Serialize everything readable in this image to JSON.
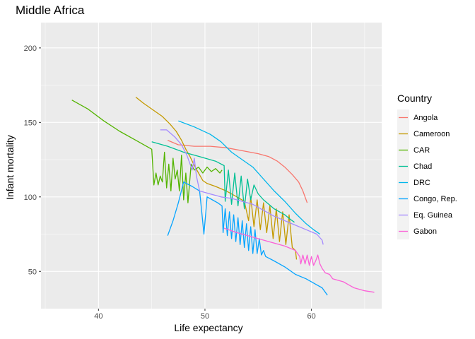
{
  "chart_data": {
    "type": "line",
    "title": "Middle Africa",
    "xlabel": "Life expectancy",
    "ylabel": "Infant mortality",
    "xlim": [
      34.6,
      66.6
    ],
    "ylim": [
      25,
      217
    ],
    "x_ticks": [
      40,
      50,
      60
    ],
    "y_ticks": [
      50,
      100,
      150,
      200
    ],
    "grid": true,
    "legend_title": "Country",
    "legend_position": "right",
    "series": [
      {
        "name": "Angola",
        "color": "#F8766D",
        "points": [
          [
            46.5,
            138
          ],
          [
            47.5,
            135
          ],
          [
            49,
            134
          ],
          [
            50.5,
            134
          ],
          [
            52,
            133
          ],
          [
            53.5,
            131
          ],
          [
            55,
            129
          ],
          [
            56,
            127
          ],
          [
            56.8,
            124
          ],
          [
            57.5,
            120
          ],
          [
            58.2,
            115
          ],
          [
            58.8,
            110
          ],
          [
            59.2,
            104
          ],
          [
            59.6,
            96
          ]
        ]
      },
      {
        "name": "Cameroon",
        "color": "#C49A00",
        "points": [
          [
            43.5,
            167
          ],
          [
            44.2,
            163
          ],
          [
            45.2,
            158
          ],
          [
            46,
            154
          ],
          [
            46.7,
            149
          ],
          [
            47.3,
            144
          ],
          [
            47.8,
            138
          ],
          [
            48.2,
            132
          ],
          [
            48.6,
            127
          ],
          [
            49,
            121
          ],
          [
            49.4,
            116
          ],
          [
            49.8,
            111
          ],
          [
            50.2,
            109
          ],
          [
            51,
            107
          ],
          [
            52,
            104
          ],
          [
            53,
            100
          ],
          [
            53.7,
            97
          ],
          [
            54.1,
            84
          ],
          [
            54.3,
            100
          ],
          [
            54.6,
            80
          ],
          [
            54.9,
            98
          ],
          [
            55.2,
            78
          ],
          [
            55.5,
            96
          ],
          [
            55.8,
            76
          ],
          [
            56.1,
            94
          ],
          [
            56.4,
            72
          ],
          [
            56.7,
            92
          ],
          [
            57,
            70
          ],
          [
            57.3,
            90
          ],
          [
            57.6,
            68
          ],
          [
            57.9,
            88
          ],
          [
            58.2,
            66
          ],
          [
            58.5,
            64
          ],
          [
            58.6,
            58
          ]
        ]
      },
      {
        "name": "CAR",
        "color": "#53B400",
        "points": [
          [
            37.5,
            165
          ],
          [
            39,
            159
          ],
          [
            40.5,
            151
          ],
          [
            42,
            144
          ],
          [
            43.5,
            138
          ],
          [
            45,
            132
          ],
          [
            45.2,
            108
          ],
          [
            45.4,
            116
          ],
          [
            45.6,
            108
          ],
          [
            45.8,
            114
          ],
          [
            46,
            110
          ],
          [
            46.2,
            130
          ],
          [
            46.4,
            106
          ],
          [
            46.6,
            122
          ],
          [
            46.8,
            104
          ],
          [
            47,
            126
          ],
          [
            47.2,
            112
          ],
          [
            47.4,
            118
          ],
          [
            47.6,
            104
          ],
          [
            47.8,
            128
          ],
          [
            48,
            98
          ],
          [
            48.2,
            116
          ],
          [
            48.4,
            96
          ],
          [
            48.7,
            122
          ],
          [
            49,
            118
          ],
          [
            49.4,
            120
          ],
          [
            49.8,
            116
          ],
          [
            50.2,
            120
          ],
          [
            50.6,
            117
          ],
          [
            51,
            119
          ],
          [
            51.4,
            116
          ],
          [
            51.6,
            118
          ]
        ]
      },
      {
        "name": "Chad",
        "color": "#00C094",
        "points": [
          [
            45,
            137
          ],
          [
            46.5,
            134
          ],
          [
            48,
            130
          ],
          [
            49.5,
            127
          ],
          [
            51,
            124
          ],
          [
            51.8,
            121
          ],
          [
            51.9,
            97
          ],
          [
            52.2,
            118
          ],
          [
            52.5,
            95
          ],
          [
            52.8,
            116
          ],
          [
            53.1,
            94
          ],
          [
            53.4,
            114
          ],
          [
            53.7,
            92
          ],
          [
            54,
            112
          ],
          [
            54.3,
            98
          ],
          [
            54.6,
            108
          ],
          [
            55,
            102
          ],
          [
            55.5,
            98
          ],
          [
            56,
            95
          ],
          [
            56.5,
            92
          ],
          [
            57,
            90
          ],
          [
            57.5,
            88
          ],
          [
            58,
            85
          ],
          [
            58.4,
            83
          ]
        ]
      },
      {
        "name": "DRC",
        "color": "#00B6EB",
        "points": [
          [
            47.5,
            151
          ],
          [
            49,
            147
          ],
          [
            50.5,
            142
          ],
          [
            51.5,
            137
          ],
          [
            52.5,
            130
          ],
          [
            53.5,
            125
          ],
          [
            54.5,
            120
          ],
          [
            55.5,
            112
          ],
          [
            56.5,
            104
          ],
          [
            57.5,
            97
          ],
          [
            58.5,
            89
          ],
          [
            59.5,
            82
          ],
          [
            60.2,
            78
          ],
          [
            60.8,
            75
          ]
        ]
      },
      {
        "name": "Congo, Rep.",
        "color": "#06A4FF",
        "points": [
          [
            46.5,
            74
          ],
          [
            47,
            84
          ],
          [
            47.5,
            96
          ],
          [
            48,
            110
          ],
          [
            48.8,
            107
          ],
          [
            49.5,
            104
          ],
          [
            49.7,
            90
          ],
          [
            49.9,
            75
          ],
          [
            50.2,
            100
          ],
          [
            50.7,
            98
          ],
          [
            51.2,
            96
          ],
          [
            51.6,
            94
          ],
          [
            51.7,
            76
          ],
          [
            51.9,
            92
          ],
          [
            52.1,
            74
          ],
          [
            52.3,
            90
          ],
          [
            52.5,
            72
          ],
          [
            52.7,
            88
          ],
          [
            52.9,
            70
          ],
          [
            53.1,
            86
          ],
          [
            53.3,
            68
          ],
          [
            53.5,
            84
          ],
          [
            53.7,
            66
          ],
          [
            53.9,
            82
          ],
          [
            54.1,
            64
          ],
          [
            54.3,
            80
          ],
          [
            54.5,
            62
          ],
          [
            54.7,
            78
          ],
          [
            54.9,
            62
          ],
          [
            55.1,
            72
          ],
          [
            55.3,
            61
          ],
          [
            55.5,
            64
          ],
          [
            55.7,
            60
          ],
          [
            56.5,
            57
          ],
          [
            57.5,
            53
          ],
          [
            58.5,
            48
          ],
          [
            59.5,
            45
          ],
          [
            60.5,
            41
          ],
          [
            61,
            39
          ],
          [
            61.3,
            36
          ],
          [
            61.5,
            34
          ]
        ]
      },
      {
        "name": "Eq. Guinea",
        "color": "#A58AFF",
        "points": [
          [
            45.8,
            145
          ],
          [
            46.4,
            145
          ],
          [
            47.2,
            140
          ],
          [
            47.8,
            135
          ],
          [
            48.3,
            128
          ],
          [
            48.8,
            118
          ],
          [
            49,
            126
          ],
          [
            49.2,
            114
          ],
          [
            49.5,
            104
          ],
          [
            50.5,
            102
          ],
          [
            51.5,
            100
          ],
          [
            52.5,
            99
          ],
          [
            53.5,
            97
          ],
          [
            54.5,
            95
          ],
          [
            55.5,
            91
          ],
          [
            56.5,
            87
          ],
          [
            57.5,
            84
          ],
          [
            58.5,
            81
          ],
          [
            59.5,
            78
          ],
          [
            60.5,
            75
          ],
          [
            61,
            71
          ],
          [
            61.1,
            68
          ]
        ]
      },
      {
        "name": "Gabon",
        "color": "#FB61D7",
        "points": [
          [
            51.8,
            79
          ],
          [
            53,
            76
          ],
          [
            54.5,
            73
          ],
          [
            56,
            70
          ],
          [
            57.5,
            67
          ],
          [
            58.5,
            64
          ],
          [
            58.9,
            60
          ],
          [
            59,
            55
          ],
          [
            59.2,
            61
          ],
          [
            59.4,
            55
          ],
          [
            59.6,
            61
          ],
          [
            59.8,
            54
          ],
          [
            60,
            60
          ],
          [
            60.2,
            54
          ],
          [
            60.4,
            57
          ],
          [
            60.6,
            61
          ],
          [
            60.8,
            55
          ],
          [
            61,
            52
          ],
          [
            61.3,
            49
          ],
          [
            61.7,
            48
          ],
          [
            62,
            45
          ],
          [
            62.5,
            44
          ],
          [
            63,
            43
          ],
          [
            63.5,
            41
          ],
          [
            64,
            39
          ],
          [
            64.5,
            38
          ],
          [
            65,
            37
          ],
          [
            65.9,
            36
          ]
        ]
      }
    ]
  }
}
